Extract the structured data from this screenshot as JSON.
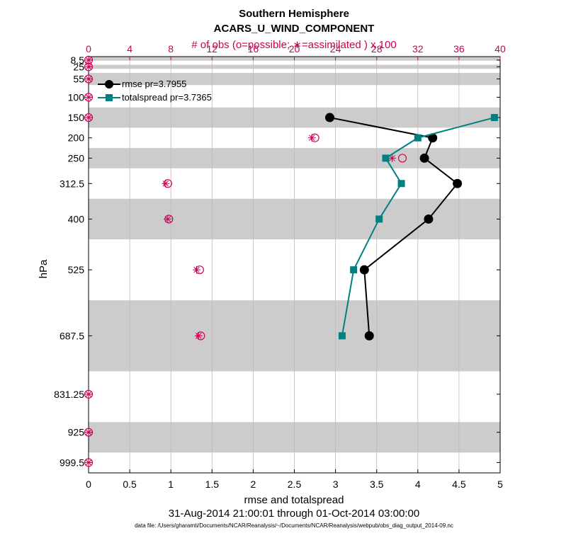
{
  "titles": {
    "line1": "Southern Hemisphere",
    "line2": "ACARS_U_WIND_COMPONENT",
    "top_axis": "# of obs (o=possible; ∗=assimilated ) x 100"
  },
  "axes": {
    "xlabel": "rmse and totalspread",
    "ylabel": "hPa",
    "date_range": "31-Aug-2014 21:00:01 through 01-Oct-2014 03:00:00",
    "footnote": "data file: /Users/gharamti/Documents/NCAR/Reanalysis/~/Documents/NCAR/Reanalysis/webpub/obs_diag_output_2014-09.nc"
  },
  "colors": {
    "rmse": "#000000",
    "spread": "#008080",
    "obs": "#cc0055",
    "band": "#cccccc",
    "grid": "#e6a3bd"
  },
  "chart_data": {
    "type": "line",
    "orientation": "vertical-profile",
    "xlim": [
      0,
      5
    ],
    "x_ticks": [
      0,
      0.5,
      1,
      1.5,
      2,
      2.5,
      3,
      3.5,
      4,
      4.5,
      5
    ],
    "x_tick_labels": [
      "0",
      "0.5",
      "1",
      "1.5",
      "2",
      "2.5",
      "3",
      "3.5",
      "4",
      "4.5",
      "5"
    ],
    "top_xlim": [
      0,
      40
    ],
    "top_ticks": [
      0,
      4,
      8,
      12,
      16,
      20,
      24,
      28,
      32,
      36,
      40
    ],
    "top_tick_labels": [
      "0",
      "4",
      "8",
      "12",
      "16",
      "20",
      "24",
      "28",
      "32",
      "36",
      "40"
    ],
    "ylim": [
      1025,
      0
    ],
    "levels": [
      8.5,
      25,
      55,
      100,
      150,
      200,
      250,
      312.5,
      400,
      525,
      687.5,
      831.25,
      925,
      999.5
    ],
    "level_labels": [
      "8.5",
      "25",
      "55",
      "100",
      "150",
      "200",
      "250",
      "312.5",
      "400",
      "525",
      "687.5",
      "831.25",
      "925",
      "999.5"
    ],
    "bands": [
      [
        0,
        10
      ],
      [
        20,
        30
      ],
      [
        40,
        70
      ],
      [
        125,
        175
      ],
      [
        225,
        275
      ],
      [
        350,
        450
      ],
      [
        600,
        775
      ],
      [
        900,
        975
      ]
    ],
    "series": [
      {
        "name": "rmse pr=3.7955",
        "levels": [
          150,
          200,
          250,
          312.5,
          400,
          525,
          687.5
        ],
        "values": [
          2.93,
          4.18,
          4.08,
          4.48,
          4.13,
          3.35,
          3.41
        ]
      },
      {
        "name": "totalspread pr=3.7365",
        "levels": [
          150,
          200,
          250,
          312.5,
          400,
          525,
          687.5
        ],
        "values": [
          4.93,
          4.0,
          3.61,
          3.8,
          3.53,
          3.22,
          3.08
        ]
      }
    ],
    "obs_possible": [
      0,
      0,
      0,
      0,
      0,
      22.0,
      30.5,
      7.7,
      7.8,
      10.8,
      10.9,
      0,
      0,
      0
    ],
    "obs_assimilated": [
      0,
      0,
      0,
      0,
      0,
      21.7,
      29.5,
      7.5,
      7.7,
      10.5,
      10.7,
      0,
      0,
      0
    ]
  }
}
